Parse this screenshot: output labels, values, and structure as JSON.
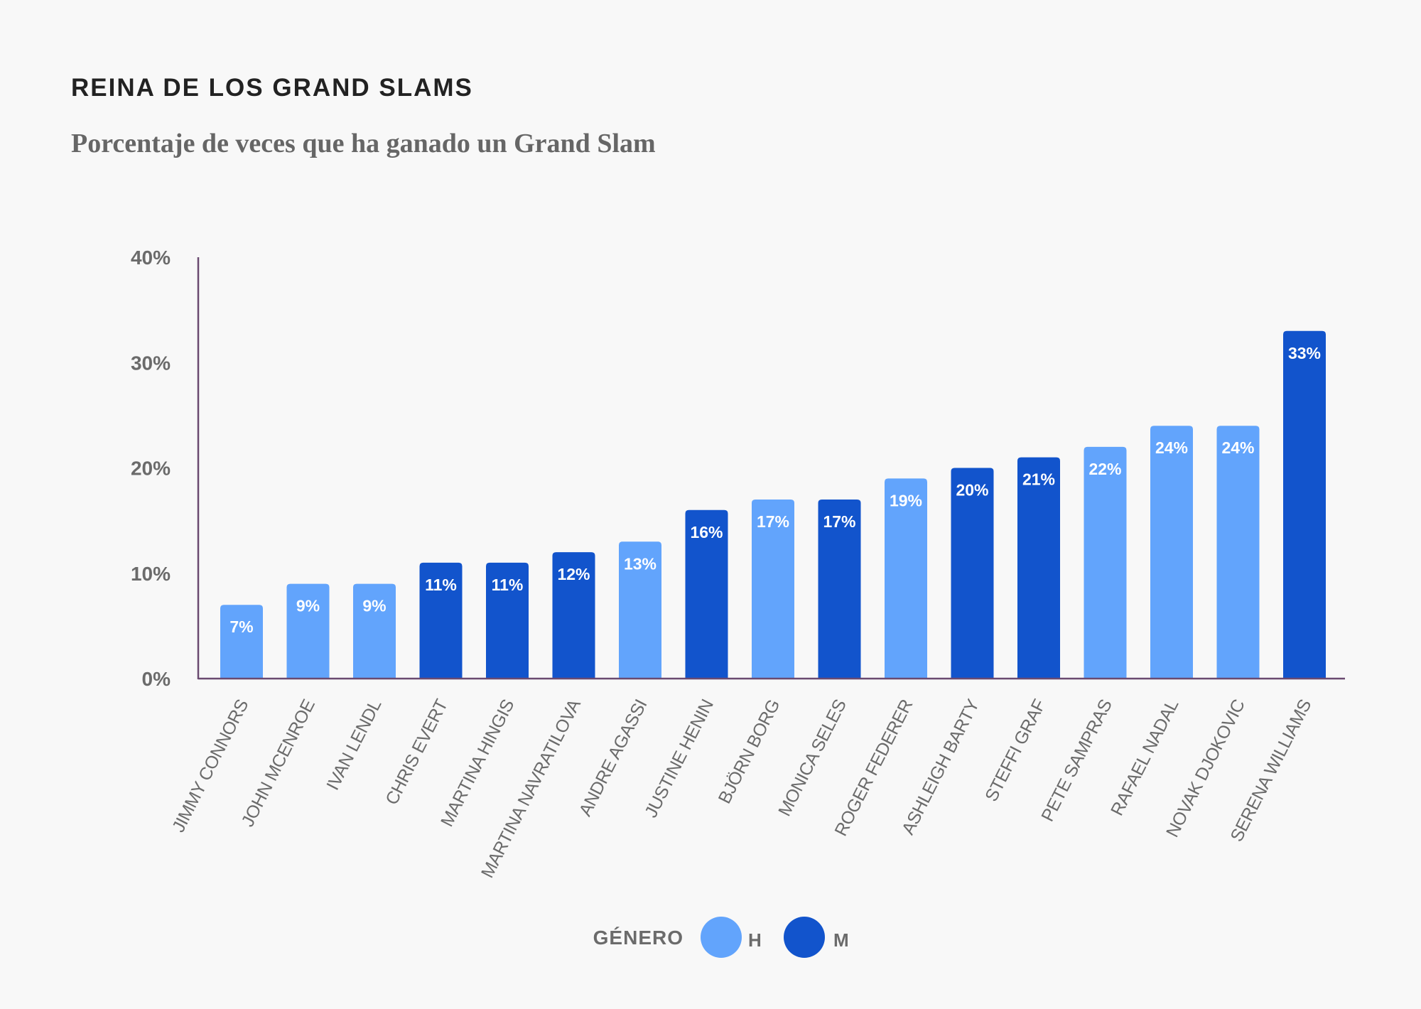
{
  "chart_data": {
    "type": "bar",
    "title": "REINA DE LOS GRAND SLAMS",
    "subtitle": "Porcentaje de veces que ha ganado un Grand Slam",
    "xlabel": "",
    "ylabel": "",
    "ylim": [
      0,
      40
    ],
    "yticks": [
      "0%",
      "10%",
      "20%",
      "30%",
      "40%"
    ],
    "ytick_values": [
      0,
      10,
      20,
      30,
      40
    ],
    "categories": [
      "JIMMY CONNORS",
      "JOHN MCENROE",
      "IVAN LENDL",
      "CHRIS EVERT",
      "MARTINA HINGIS",
      "MARTINA NAVRATILOVA",
      "ANDRE AGASSI",
      "JUSTINE HENIN",
      "BJÖRN BORG",
      "MONICA SELES",
      "ROGER FEDERER",
      "ASHLEIGH BARTY",
      "STEFFI GRAF",
      "PETE SAMPRAS",
      "RAFAEL NADAL",
      "NOVAK DJOKOVIC",
      "SERENA WILLIAMS"
    ],
    "values": [
      7,
      9,
      9,
      11,
      11,
      12,
      13,
      16,
      17,
      17,
      19,
      20,
      21,
      22,
      24,
      24,
      33
    ],
    "value_labels": [
      "7%",
      "9%",
      "9%",
      "11%",
      "11%",
      "12%",
      "13%",
      "16%",
      "17%",
      "17%",
      "19%",
      "20%",
      "21%",
      "22%",
      "24%",
      "24%",
      "33%"
    ],
    "groups": [
      "H",
      "H",
      "H",
      "M",
      "M",
      "M",
      "H",
      "M",
      "H",
      "M",
      "H",
      "M",
      "M",
      "H",
      "H",
      "H",
      "M"
    ],
    "legend": {
      "title": "GÉNERO",
      "position": "bottom-center",
      "items": [
        {
          "key": "H",
          "label": "H",
          "color": "#62a4fc"
        },
        {
          "key": "M",
          "label": "M",
          "color": "#1254cc"
        }
      ]
    },
    "axis_color": "#6a4a70",
    "grid": false
  }
}
